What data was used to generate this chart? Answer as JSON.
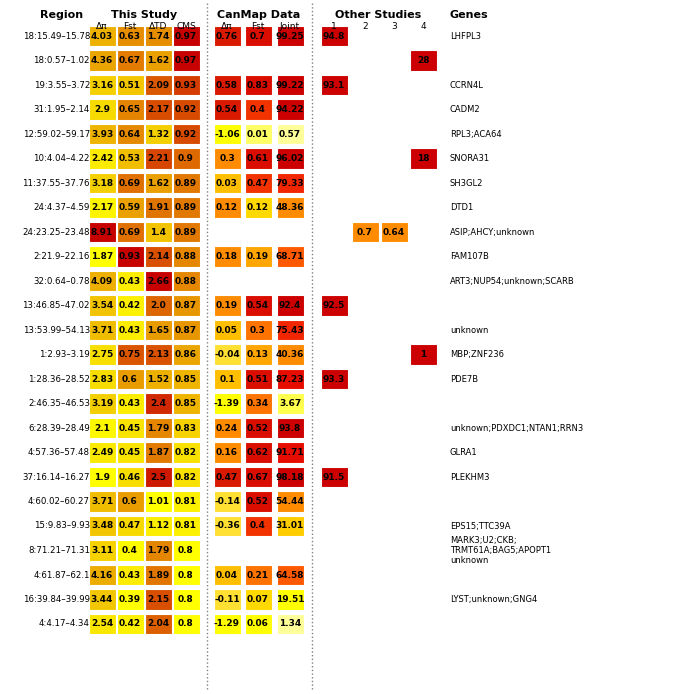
{
  "regions": [
    "18:15.49–15.78",
    "18:0.57–1.02",
    "19:3.55–3.72",
    "31:1.95–2.14",
    "12:59.02–59.17",
    "10:4.04–4.22",
    "11:37.55–37.76",
    "24:4.37–4.59",
    "24:23.25–23.48",
    "2:21.9–22.16",
    "32:0.64–0.78",
    "13:46.85–47.02",
    "13:53.99–54.13",
    "1:2.93–3.19",
    "1:28.36–28.52",
    "2:46.35–46.53",
    "6:28.39–28.49",
    "4:57.36–57.48",
    "37:16.14–16.27",
    "4:60.02–60.27",
    "15:9.83–9.93",
    "8:71.21–71.31",
    "4:61.87–62.1",
    "16:39.84–39.99",
    "4:4.17–4.34"
  ],
  "delta_pi": [
    4.03,
    4.36,
    3.16,
    2.9,
    3.93,
    2.42,
    3.18,
    2.17,
    8.91,
    1.87,
    4.09,
    3.54,
    3.71,
    2.75,
    2.83,
    3.19,
    2.1,
    2.49,
    1.9,
    3.71,
    3.48,
    3.11,
    4.16,
    3.44,
    2.54
  ],
  "fst1": [
    0.63,
    0.67,
    0.51,
    0.65,
    0.64,
    0.53,
    0.69,
    0.59,
    0.69,
    0.93,
    0.43,
    0.42,
    0.43,
    0.75,
    0.6,
    0.43,
    0.45,
    0.45,
    0.46,
    0.6,
    0.47,
    0.4,
    0.43,
    0.39,
    0.42
  ],
  "delta_td": [
    1.74,
    1.62,
    2.09,
    2.17,
    1.32,
    2.21,
    1.62,
    1.91,
    1.4,
    2.14,
    2.66,
    2.0,
    1.65,
    2.13,
    1.52,
    2.4,
    1.79,
    1.87,
    2.5,
    1.01,
    1.12,
    1.79,
    1.89,
    2.15,
    2.04
  ],
  "cms": [
    0.97,
    0.97,
    0.93,
    0.92,
    0.92,
    0.9,
    0.89,
    0.89,
    0.89,
    0.88,
    0.88,
    0.87,
    0.87,
    0.86,
    0.85,
    0.85,
    0.83,
    0.82,
    0.82,
    0.81,
    0.81,
    0.8,
    0.8,
    0.8,
    0.8
  ],
  "c_dpi": [
    0.76,
    null,
    0.58,
    0.54,
    -1.06,
    0.3,
    0.03,
    0.12,
    null,
    0.18,
    null,
    0.19,
    0.05,
    -0.04,
    0.1,
    -1.39,
    0.24,
    0.16,
    0.47,
    -0.14,
    -0.36,
    null,
    0.04,
    -0.11,
    -1.29
  ],
  "c_fst": [
    0.7,
    null,
    0.83,
    0.4,
    0.01,
    0.61,
    0.47,
    0.12,
    null,
    0.19,
    null,
    0.54,
    0.3,
    0.13,
    0.51,
    0.34,
    0.52,
    0.62,
    0.67,
    0.52,
    0.4,
    null,
    0.21,
    0.07,
    0.06
  ],
  "c_joint": [
    99.25,
    null,
    99.22,
    94.22,
    0.57,
    96.02,
    79.33,
    48.36,
    null,
    68.71,
    null,
    92.4,
    75.43,
    40.36,
    87.23,
    3.67,
    93.8,
    91.71,
    98.18,
    54.44,
    31.01,
    null,
    64.58,
    19.51,
    1.34
  ],
  "s1": [
    94.8,
    null,
    93.1,
    null,
    null,
    null,
    null,
    null,
    null,
    null,
    null,
    92.5,
    null,
    null,
    93.3,
    null,
    null,
    null,
    91.5,
    null,
    null,
    null,
    null,
    null,
    null
  ],
  "s2": [
    null,
    null,
    null,
    null,
    null,
    null,
    null,
    null,
    0.7,
    null,
    null,
    null,
    null,
    null,
    null,
    null,
    null,
    null,
    null,
    null,
    null,
    null,
    null,
    null,
    null
  ],
  "s3": [
    null,
    null,
    null,
    null,
    null,
    null,
    null,
    null,
    0.64,
    null,
    null,
    null,
    null,
    null,
    null,
    null,
    null,
    null,
    null,
    null,
    null,
    null,
    null,
    null,
    null
  ],
  "s4": [
    null,
    28,
    null,
    null,
    null,
    18,
    null,
    null,
    null,
    null,
    null,
    null,
    null,
    1,
    null,
    null,
    null,
    null,
    null,
    null,
    null,
    null,
    null,
    null,
    null
  ],
  "genes": [
    "LHFPL3",
    "",
    "CCRN4L",
    "CADM2",
    "RPL3;ACA64",
    "SNORA31",
    "SH3GL2",
    "DTD1",
    "ASIP;AHCY;unknown",
    "FAM107B",
    "ART3;NUP54;unknown;SCARB",
    "",
    "unknown",
    "MBP;ZNF236",
    "PDE7B",
    "",
    "unknown;PDXDC1;NTAN1;RRN3",
    "GLRA1",
    "PLEKHM3",
    "",
    "EPS15;TTC39A",
    "MARK3;U2;CKB;\nTRMT61A;BAG5;APOPT1\nunknown",
    "",
    "LYST;unknown;GNG4",
    ""
  ]
}
